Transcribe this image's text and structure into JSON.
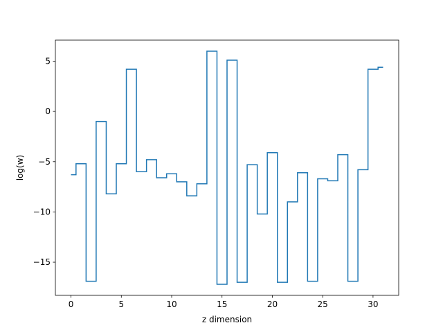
{
  "chart_data": {
    "type": "line",
    "drawstyle": "steps-mid",
    "xlabel": "z dimension",
    "ylabel": "log(w)",
    "xlim": [
      -1.55,
      32.55
    ],
    "ylim": [
      -18.3,
      7.1
    ],
    "xticks": [
      0,
      5,
      10,
      15,
      20,
      25,
      30
    ],
    "xtick_labels": [
      "0",
      "5",
      "10",
      "15",
      "20",
      "25",
      "30"
    ],
    "yticks": [
      -15,
      -10,
      -5,
      0,
      5
    ],
    "ytick_labels": [
      "−15",
      "−10",
      "−5",
      "0",
      "5"
    ],
    "grid": false,
    "series": [
      {
        "color": "#1f77b4",
        "x": [
          0,
          1,
          2,
          3,
          4,
          5,
          6,
          7,
          8,
          9,
          10,
          11,
          12,
          13,
          14,
          15,
          16,
          17,
          18,
          19,
          20,
          21,
          22,
          23,
          24,
          25,
          26,
          27,
          28,
          29,
          30,
          31
        ],
        "y": [
          -6.3,
          -5.2,
          -16.9,
          -1.0,
          -8.2,
          -5.2,
          4.2,
          -6.0,
          -4.8,
          -6.6,
          -6.2,
          -7.0,
          -8.4,
          -7.2,
          6.0,
          -17.2,
          5.1,
          -17.0,
          -5.3,
          -10.2,
          -4.1,
          -17.0,
          -9.0,
          -6.1,
          -16.9,
          -6.7,
          -6.9,
          -4.3,
          -16.9,
          -5.8,
          4.2,
          4.4
        ]
      }
    ]
  }
}
